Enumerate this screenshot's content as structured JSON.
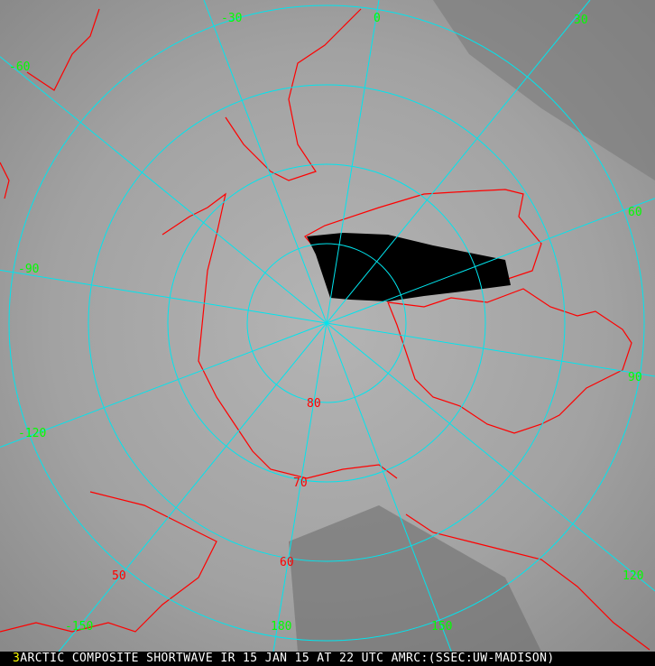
{
  "caption": {
    "frame_number": "3",
    "text": "ARCTIC COMPOSITE SHORTWAVE IR 15 JAN 15 AT 22 UTC AMRC:(SSEC:UW-MADISON)"
  },
  "map": {
    "projection": "polar stereographic (north pole)",
    "longitude_labels": [
      "-30",
      "0",
      "30",
      "60",
      "90",
      "120",
      "150",
      "180",
      "-150",
      "-120",
      "-90",
      "-60"
    ],
    "latitude_labels": [
      "80",
      "70",
      "60",
      "50"
    ],
    "colors": {
      "graticule": "#00e5ee",
      "coastline": "#ff0000",
      "longitude_label": "#00ff00",
      "latitude_label": "#ff0000",
      "no_data_swath": "#000000"
    }
  }
}
